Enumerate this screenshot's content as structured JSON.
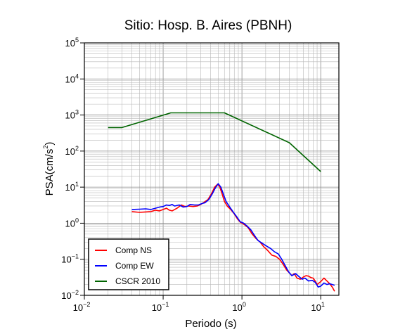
{
  "chart_data": {
    "type": "line",
    "title": "Sitio: Hosp. B. Aires (PBNH)",
    "xlabel": "Periodo (s)",
    "ylabel_base": "PSA(cm/s",
    "ylabel_exp": "2",
    "ylabel_close": ")",
    "x_scale": "log",
    "y_scale": "log",
    "xlim": [
      0.01,
      17
    ],
    "ylim": [
      0.01,
      100000
    ],
    "grid": true,
    "legend_position": "bottom-left",
    "x_ticks": [
      {
        "value": 0.01,
        "base": "10",
        "exp": "−2"
      },
      {
        "value": 0.1,
        "base": "10",
        "exp": "−1"
      },
      {
        "value": 1,
        "base": "10",
        "exp": "0"
      },
      {
        "value": 10,
        "base": "10",
        "exp": "1"
      }
    ],
    "y_ticks": [
      {
        "value": 0.01,
        "base": "10",
        "exp": "−2"
      },
      {
        "value": 0.1,
        "base": "10",
        "exp": "−1"
      },
      {
        "value": 1,
        "base": "10",
        "exp": "0"
      },
      {
        "value": 10,
        "base": "10",
        "exp": "1"
      },
      {
        "value": 100,
        "base": "10",
        "exp": "2"
      },
      {
        "value": 1000,
        "base": "10",
        "exp": "3"
      },
      {
        "value": 10000,
        "base": "10",
        "exp": "4"
      },
      {
        "value": 100000,
        "base": "10",
        "exp": "5"
      }
    ],
    "series": [
      {
        "name": "Comp NS",
        "color": "#ff0000",
        "points": [
          [
            0.04,
            2.1
          ],
          [
            0.05,
            2.0
          ],
          [
            0.06,
            2.05
          ],
          [
            0.07,
            2.1
          ],
          [
            0.08,
            2.3
          ],
          [
            0.09,
            2.2
          ],
          [
            0.1,
            2.4
          ],
          [
            0.11,
            2.6
          ],
          [
            0.12,
            2.3
          ],
          [
            0.13,
            2.2
          ],
          [
            0.15,
            2.6
          ],
          [
            0.17,
            3.2
          ],
          [
            0.19,
            2.9
          ],
          [
            0.21,
            3.0
          ],
          [
            0.24,
            2.9
          ],
          [
            0.27,
            3.0
          ],
          [
            0.3,
            3.3
          ],
          [
            0.33,
            3.8
          ],
          [
            0.37,
            4.5
          ],
          [
            0.41,
            6.5
          ],
          [
            0.45,
            10.0
          ],
          [
            0.49,
            12.0
          ],
          [
            0.52,
            10.5
          ],
          [
            0.56,
            6.5
          ],
          [
            0.6,
            4.0
          ],
          [
            0.65,
            3.0
          ],
          [
            0.72,
            2.4
          ],
          [
            0.8,
            1.8
          ],
          [
            0.88,
            1.3
          ],
          [
            0.96,
            1.05
          ],
          [
            1.05,
            0.95
          ],
          [
            1.2,
            0.75
          ],
          [
            1.35,
            0.5
          ],
          [
            1.5,
            0.38
          ],
          [
            1.7,
            0.3
          ],
          [
            1.9,
            0.22
          ],
          [
            2.1,
            0.18
          ],
          [
            2.4,
            0.13
          ],
          [
            2.7,
            0.12
          ],
          [
            3.0,
            0.1
          ],
          [
            3.3,
            0.075
          ],
          [
            3.7,
            0.05
          ],
          [
            4.0,
            0.042
          ],
          [
            4.3,
            0.035
          ],
          [
            4.6,
            0.04
          ],
          [
            5.0,
            0.03
          ],
          [
            5.5,
            0.028
          ],
          [
            6.0,
            0.032
          ],
          [
            6.5,
            0.035
          ],
          [
            7.0,
            0.034
          ],
          [
            7.5,
            0.031
          ],
          [
            8.0,
            0.03
          ],
          [
            8.5,
            0.025
          ],
          [
            9.0,
            0.02
          ],
          [
            10.0,
            0.024
          ],
          [
            11.0,
            0.03
          ],
          [
            12.0,
            0.025
          ],
          [
            13.0,
            0.021
          ],
          [
            14.0,
            0.017
          ],
          [
            15.0,
            0.013
          ]
        ]
      },
      {
        "name": "Comp EW",
        "color": "#0000ff",
        "points": [
          [
            0.04,
            2.4
          ],
          [
            0.05,
            2.45
          ],
          [
            0.06,
            2.5
          ],
          [
            0.07,
            2.4
          ],
          [
            0.08,
            2.6
          ],
          [
            0.09,
            2.8
          ],
          [
            0.1,
            2.9
          ],
          [
            0.11,
            3.2
          ],
          [
            0.12,
            3.1
          ],
          [
            0.13,
            3.3
          ],
          [
            0.14,
            3.0
          ],
          [
            0.16,
            3.2
          ],
          [
            0.18,
            2.8
          ],
          [
            0.2,
            2.9
          ],
          [
            0.22,
            3.3
          ],
          [
            0.25,
            3.2
          ],
          [
            0.28,
            3.2
          ],
          [
            0.31,
            3.5
          ],
          [
            0.34,
            3.7
          ],
          [
            0.38,
            4.5
          ],
          [
            0.42,
            6.5
          ],
          [
            0.46,
            9.5
          ],
          [
            0.5,
            12.5
          ],
          [
            0.54,
            10.0
          ],
          [
            0.58,
            6.5
          ],
          [
            0.63,
            4.0
          ],
          [
            0.7,
            2.8
          ],
          [
            0.78,
            2.0
          ],
          [
            0.86,
            1.5
          ],
          [
            0.95,
            1.1
          ],
          [
            1.05,
            1.0
          ],
          [
            1.15,
            0.85
          ],
          [
            1.3,
            0.65
          ],
          [
            1.45,
            0.45
          ],
          [
            1.6,
            0.33
          ],
          [
            1.8,
            0.28
          ],
          [
            2.0,
            0.24
          ],
          [
            2.3,
            0.2
          ],
          [
            2.6,
            0.16
          ],
          [
            2.9,
            0.14
          ],
          [
            3.2,
            0.1
          ],
          [
            3.5,
            0.07
          ],
          [
            3.9,
            0.045
          ],
          [
            4.3,
            0.035
          ],
          [
            4.8,
            0.04
          ],
          [
            5.3,
            0.033
          ],
          [
            5.8,
            0.028
          ],
          [
            6.3,
            0.03
          ],
          [
            7.0,
            0.025
          ],
          [
            7.8,
            0.026
          ],
          [
            8.5,
            0.023
          ],
          [
            9.3,
            0.017
          ],
          [
            10.0,
            0.018
          ],
          [
            11.0,
            0.022
          ],
          [
            12.0,
            0.02
          ],
          [
            13.0,
            0.021
          ],
          [
            14.0,
            0.02
          ],
          [
            15.0,
            0.019
          ]
        ]
      },
      {
        "name": "CSCR 2010",
        "color": "#006400",
        "points": [
          [
            0.02,
            450
          ],
          [
            0.03,
            450
          ],
          [
            0.125,
            1150
          ],
          [
            0.6,
            1150
          ],
          [
            4.0,
            170
          ],
          [
            10.0,
            27
          ]
        ]
      }
    ]
  }
}
